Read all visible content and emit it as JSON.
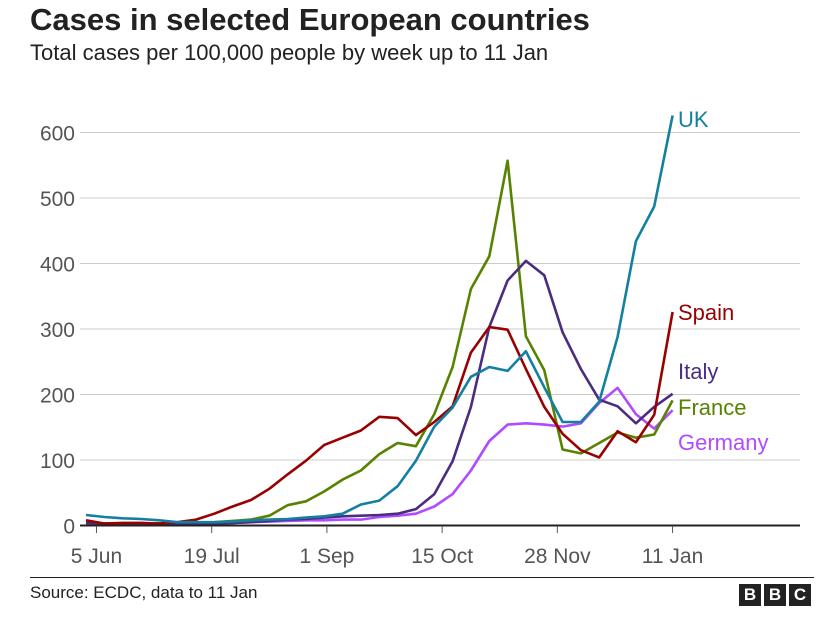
{
  "header": {
    "title": "Cases in selected European countries",
    "subtitle": "Total cases per 100,000 people by week up to 11 Jan"
  },
  "footer": {
    "source": "Source: ECDC, data to 11 Jan",
    "logo": "BBC"
  },
  "chart_data": {
    "type": "line",
    "title": "Cases in selected European countries",
    "subtitle": "Total cases per 100,000 people by week up to 11 Jan",
    "xlabel": "",
    "ylabel": "",
    "ylim": [
      0,
      600
    ],
    "yticks": [
      0,
      100,
      200,
      300,
      400,
      500,
      600
    ],
    "grid": true,
    "legend": "direct labels at line ends (right)",
    "xticks": [
      {
        "date": "2020-06-05",
        "label": "5 Jun"
      },
      {
        "date": "2020-07-19",
        "label": "19 Jul"
      },
      {
        "date": "2020-09-01",
        "label": "1 Sep"
      },
      {
        "date": "2020-10-15",
        "label": "15 Oct"
      },
      {
        "date": "2020-11-28",
        "label": "28 Nov"
      },
      {
        "date": "2021-01-11",
        "label": "11 Jan"
      }
    ],
    "x": [
      "2020-06-01",
      "2020-06-08",
      "2020-06-15",
      "2020-06-22",
      "2020-06-29",
      "2020-07-06",
      "2020-07-13",
      "2020-07-20",
      "2020-07-27",
      "2020-08-03",
      "2020-08-10",
      "2020-08-17",
      "2020-08-24",
      "2020-08-31",
      "2020-09-07",
      "2020-09-14",
      "2020-09-21",
      "2020-09-28",
      "2020-10-05",
      "2020-10-12",
      "2020-10-19",
      "2020-10-26",
      "2020-11-02",
      "2020-11-09",
      "2020-11-16",
      "2020-11-23",
      "2020-11-30",
      "2020-12-07",
      "2020-12-14",
      "2020-12-21",
      "2020-12-28",
      "2021-01-04",
      "2021-01-11"
    ],
    "series": [
      {
        "name": "Germany",
        "color": "#B04BFF",
        "values": [
          2,
          2,
          2,
          2,
          2,
          2,
          2,
          3,
          4,
          5,
          6,
          7,
          8,
          8,
          9,
          9,
          13,
          15,
          18,
          29,
          48,
          84,
          129,
          154,
          156,
          154,
          151,
          156,
          187,
          210,
          170,
          148,
          176
        ]
      },
      {
        "name": "France",
        "color": "#588300",
        "values": [
          3,
          3,
          3,
          3,
          3,
          3,
          4,
          5,
          7,
          9,
          15,
          31,
          37,
          52,
          70,
          84,
          109,
          126,
          121,
          170,
          242,
          361,
          411,
          557,
          289,
          237,
          116,
          110,
          126,
          142,
          134,
          139,
          191
        ]
      },
      {
        "name": "Italy",
        "color": "#4B2D80",
        "values": [
          4,
          3,
          3,
          3,
          3,
          3,
          3,
          3,
          4,
          5,
          7,
          9,
          10,
          12,
          14,
          15,
          16,
          18,
          25,
          48,
          98,
          181,
          303,
          374,
          404,
          382,
          295,
          239,
          192,
          182,
          156,
          181,
          201
        ]
      },
      {
        "name": "Spain",
        "color": "#990000",
        "values": [
          8,
          3,
          4,
          4,
          3,
          5,
          9,
          18,
          29,
          39,
          56,
          78,
          99,
          123,
          134,
          145,
          166,
          164,
          138,
          158,
          182,
          264,
          303,
          299,
          239,
          181,
          140,
          115,
          104,
          144,
          127,
          169,
          326
        ]
      },
      {
        "name": "UK",
        "color": "#1380A1",
        "values": [
          16,
          13,
          11,
          10,
          8,
          5,
          5,
          5,
          6,
          8,
          9,
          10,
          12,
          14,
          18,
          32,
          38,
          60,
          99,
          151,
          180,
          227,
          242,
          236,
          266,
          211,
          158,
          158,
          189,
          288,
          434,
          487,
          626
        ]
      }
    ]
  }
}
